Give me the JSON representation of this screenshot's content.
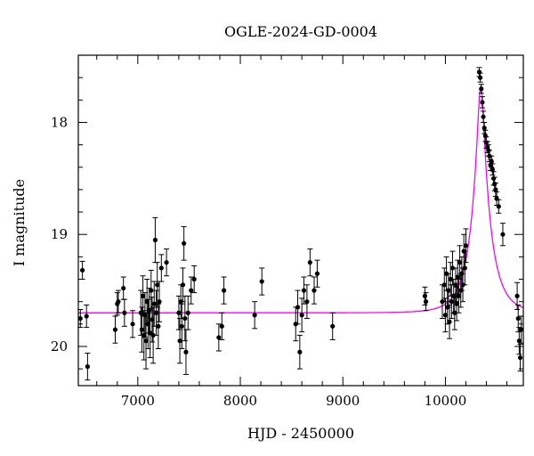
{
  "chart_data": {
    "type": "scatter",
    "title": "OGLE-2024-GD-0004",
    "xlabel": "HJD - 2450000",
    "ylabel": "I magnitude",
    "xlim": [
      6420,
      10760
    ],
    "ylim": [
      20.35,
      17.4
    ],
    "y_inverted": true,
    "grid": false,
    "x_ticks": [
      7000,
      8000,
      9000,
      10000
    ],
    "y_ticks": [
      18,
      19,
      20
    ],
    "x_minor_step": 200,
    "y_minor_step": 0.2,
    "colors": {
      "data": "#000000",
      "model": "#ff00ff",
      "frame": "#000000"
    },
    "series": [
      {
        "name": "observations",
        "kind": "points_with_errorbars",
        "points": [
          [
            6440,
            19.75,
            0.08
          ],
          [
            6460,
            19.32,
            0.08
          ],
          [
            6500,
            19.73,
            0.1
          ],
          [
            6510,
            20.18,
            0.12
          ],
          [
            6780,
            19.85,
            0.12
          ],
          [
            6800,
            19.62,
            0.1
          ],
          [
            6810,
            19.6,
            0.1
          ],
          [
            6860,
            19.48,
            0.1
          ],
          [
            6870,
            19.7,
            0.12
          ],
          [
            6950,
            19.8,
            0.12
          ],
          [
            7030,
            19.7,
            0.2
          ],
          [
            7040,
            19.85,
            0.2
          ],
          [
            7050,
            19.55,
            0.18
          ],
          [
            7060,
            19.9,
            0.22
          ],
          [
            7070,
            19.72,
            0.2
          ],
          [
            7080,
            19.95,
            0.25
          ],
          [
            7090,
            19.6,
            0.2
          ],
          [
            7100,
            19.8,
            0.22
          ],
          [
            7110,
            19.68,
            0.2
          ],
          [
            7120,
            19.88,
            0.22
          ],
          [
            7130,
            19.5,
            0.18
          ],
          [
            7140,
            19.76,
            0.2
          ],
          [
            7150,
            19.9,
            0.25
          ],
          [
            7160,
            19.62,
            0.2
          ],
          [
            7170,
            19.05,
            0.2
          ],
          [
            7180,
            19.7,
            0.2
          ],
          [
            7190,
            19.45,
            0.2
          ],
          [
            7200,
            19.82,
            0.2
          ],
          [
            7210,
            19.6,
            0.18
          ],
          [
            7230,
            19.3,
            0.12
          ],
          [
            7280,
            19.25,
            0.12
          ],
          [
            7400,
            19.7,
            0.15
          ],
          [
            7410,
            19.95,
            0.2
          ],
          [
            7420,
            19.6,
            0.15
          ],
          [
            7430,
            19.82,
            0.2
          ],
          [
            7440,
            19.45,
            0.15
          ],
          [
            7450,
            19.08,
            0.15
          ],
          [
            7460,
            19.75,
            0.2
          ],
          [
            7470,
            20.05,
            0.2
          ],
          [
            7490,
            19.7,
            0.15
          ],
          [
            7520,
            19.5,
            0.12
          ],
          [
            7550,
            19.4,
            0.12
          ],
          [
            7790,
            19.92,
            0.12
          ],
          [
            7820,
            19.82,
            0.12
          ],
          [
            7840,
            19.5,
            0.12
          ],
          [
            8140,
            19.72,
            0.12
          ],
          [
            8210,
            19.42,
            0.12
          ],
          [
            8540,
            19.8,
            0.15
          ],
          [
            8560,
            19.65,
            0.15
          ],
          [
            8580,
            20.05,
            0.15
          ],
          [
            8600,
            19.72,
            0.15
          ],
          [
            8620,
            19.5,
            0.12
          ],
          [
            8650,
            19.6,
            0.15
          ],
          [
            8680,
            19.25,
            0.12
          ],
          [
            8720,
            19.5,
            0.12
          ],
          [
            8750,
            19.35,
            0.12
          ],
          [
            8900,
            19.82,
            0.12
          ],
          [
            9800,
            19.55,
            0.08
          ],
          [
            9810,
            19.6,
            0.08
          ],
          [
            9970,
            19.6,
            0.15
          ],
          [
            9990,
            19.45,
            0.15
          ],
          [
            10000,
            19.72,
            0.15
          ],
          [
            10010,
            19.35,
            0.15
          ],
          [
            10020,
            19.65,
            0.15
          ],
          [
            10030,
            19.5,
            0.15
          ],
          [
            10040,
            19.78,
            0.15
          ],
          [
            10050,
            19.4,
            0.15
          ],
          [
            10060,
            19.6,
            0.15
          ],
          [
            10070,
            19.3,
            0.15
          ],
          [
            10080,
            19.55,
            0.15
          ],
          [
            10090,
            19.7,
            0.15
          ],
          [
            10100,
            19.45,
            0.15
          ],
          [
            10110,
            19.62,
            0.15
          ],
          [
            10120,
            19.38,
            0.15
          ],
          [
            10130,
            19.55,
            0.15
          ],
          [
            10140,
            19.25,
            0.15
          ],
          [
            10150,
            19.5,
            0.15
          ],
          [
            10160,
            19.35,
            0.15
          ],
          [
            10170,
            19.45,
            0.15
          ],
          [
            10180,
            19.15,
            0.15
          ],
          [
            10190,
            19.3,
            0.15
          ],
          [
            10200,
            19.1,
            0.15
          ],
          [
            10330,
            17.55,
            0.04
          ],
          [
            10340,
            17.6,
            0.04
          ],
          [
            10350,
            17.7,
            0.04
          ],
          [
            10360,
            17.82,
            0.05
          ],
          [
            10370,
            17.95,
            0.05
          ],
          [
            10380,
            18.05,
            0.05
          ],
          [
            10390,
            18.12,
            0.05
          ],
          [
            10400,
            18.18,
            0.05
          ],
          [
            10410,
            18.22,
            0.05
          ],
          [
            10420,
            18.25,
            0.05
          ],
          [
            10430,
            18.3,
            0.05
          ],
          [
            10440,
            18.38,
            0.05
          ],
          [
            10450,
            18.35,
            0.05
          ],
          [
            10460,
            18.42,
            0.05
          ],
          [
            10470,
            18.5,
            0.06
          ],
          [
            10480,
            18.55,
            0.06
          ],
          [
            10490,
            18.6,
            0.06
          ],
          [
            10500,
            18.68,
            0.06
          ],
          [
            10520,
            18.75,
            0.06
          ],
          [
            10560,
            19.0,
            0.1
          ],
          [
            10700,
            19.55,
            0.12
          ],
          [
            10710,
            19.75,
            0.12
          ],
          [
            10720,
            19.95,
            0.12
          ],
          [
            10730,
            20.1,
            0.12
          ],
          [
            10740,
            19.85,
            0.12
          ]
        ]
      },
      {
        "name": "model",
        "kind": "line",
        "baseline_mag": 19.7,
        "peak_mag": 17.68,
        "t0": 10345,
        "tE": 185,
        "u0": 0.165
      }
    ]
  }
}
